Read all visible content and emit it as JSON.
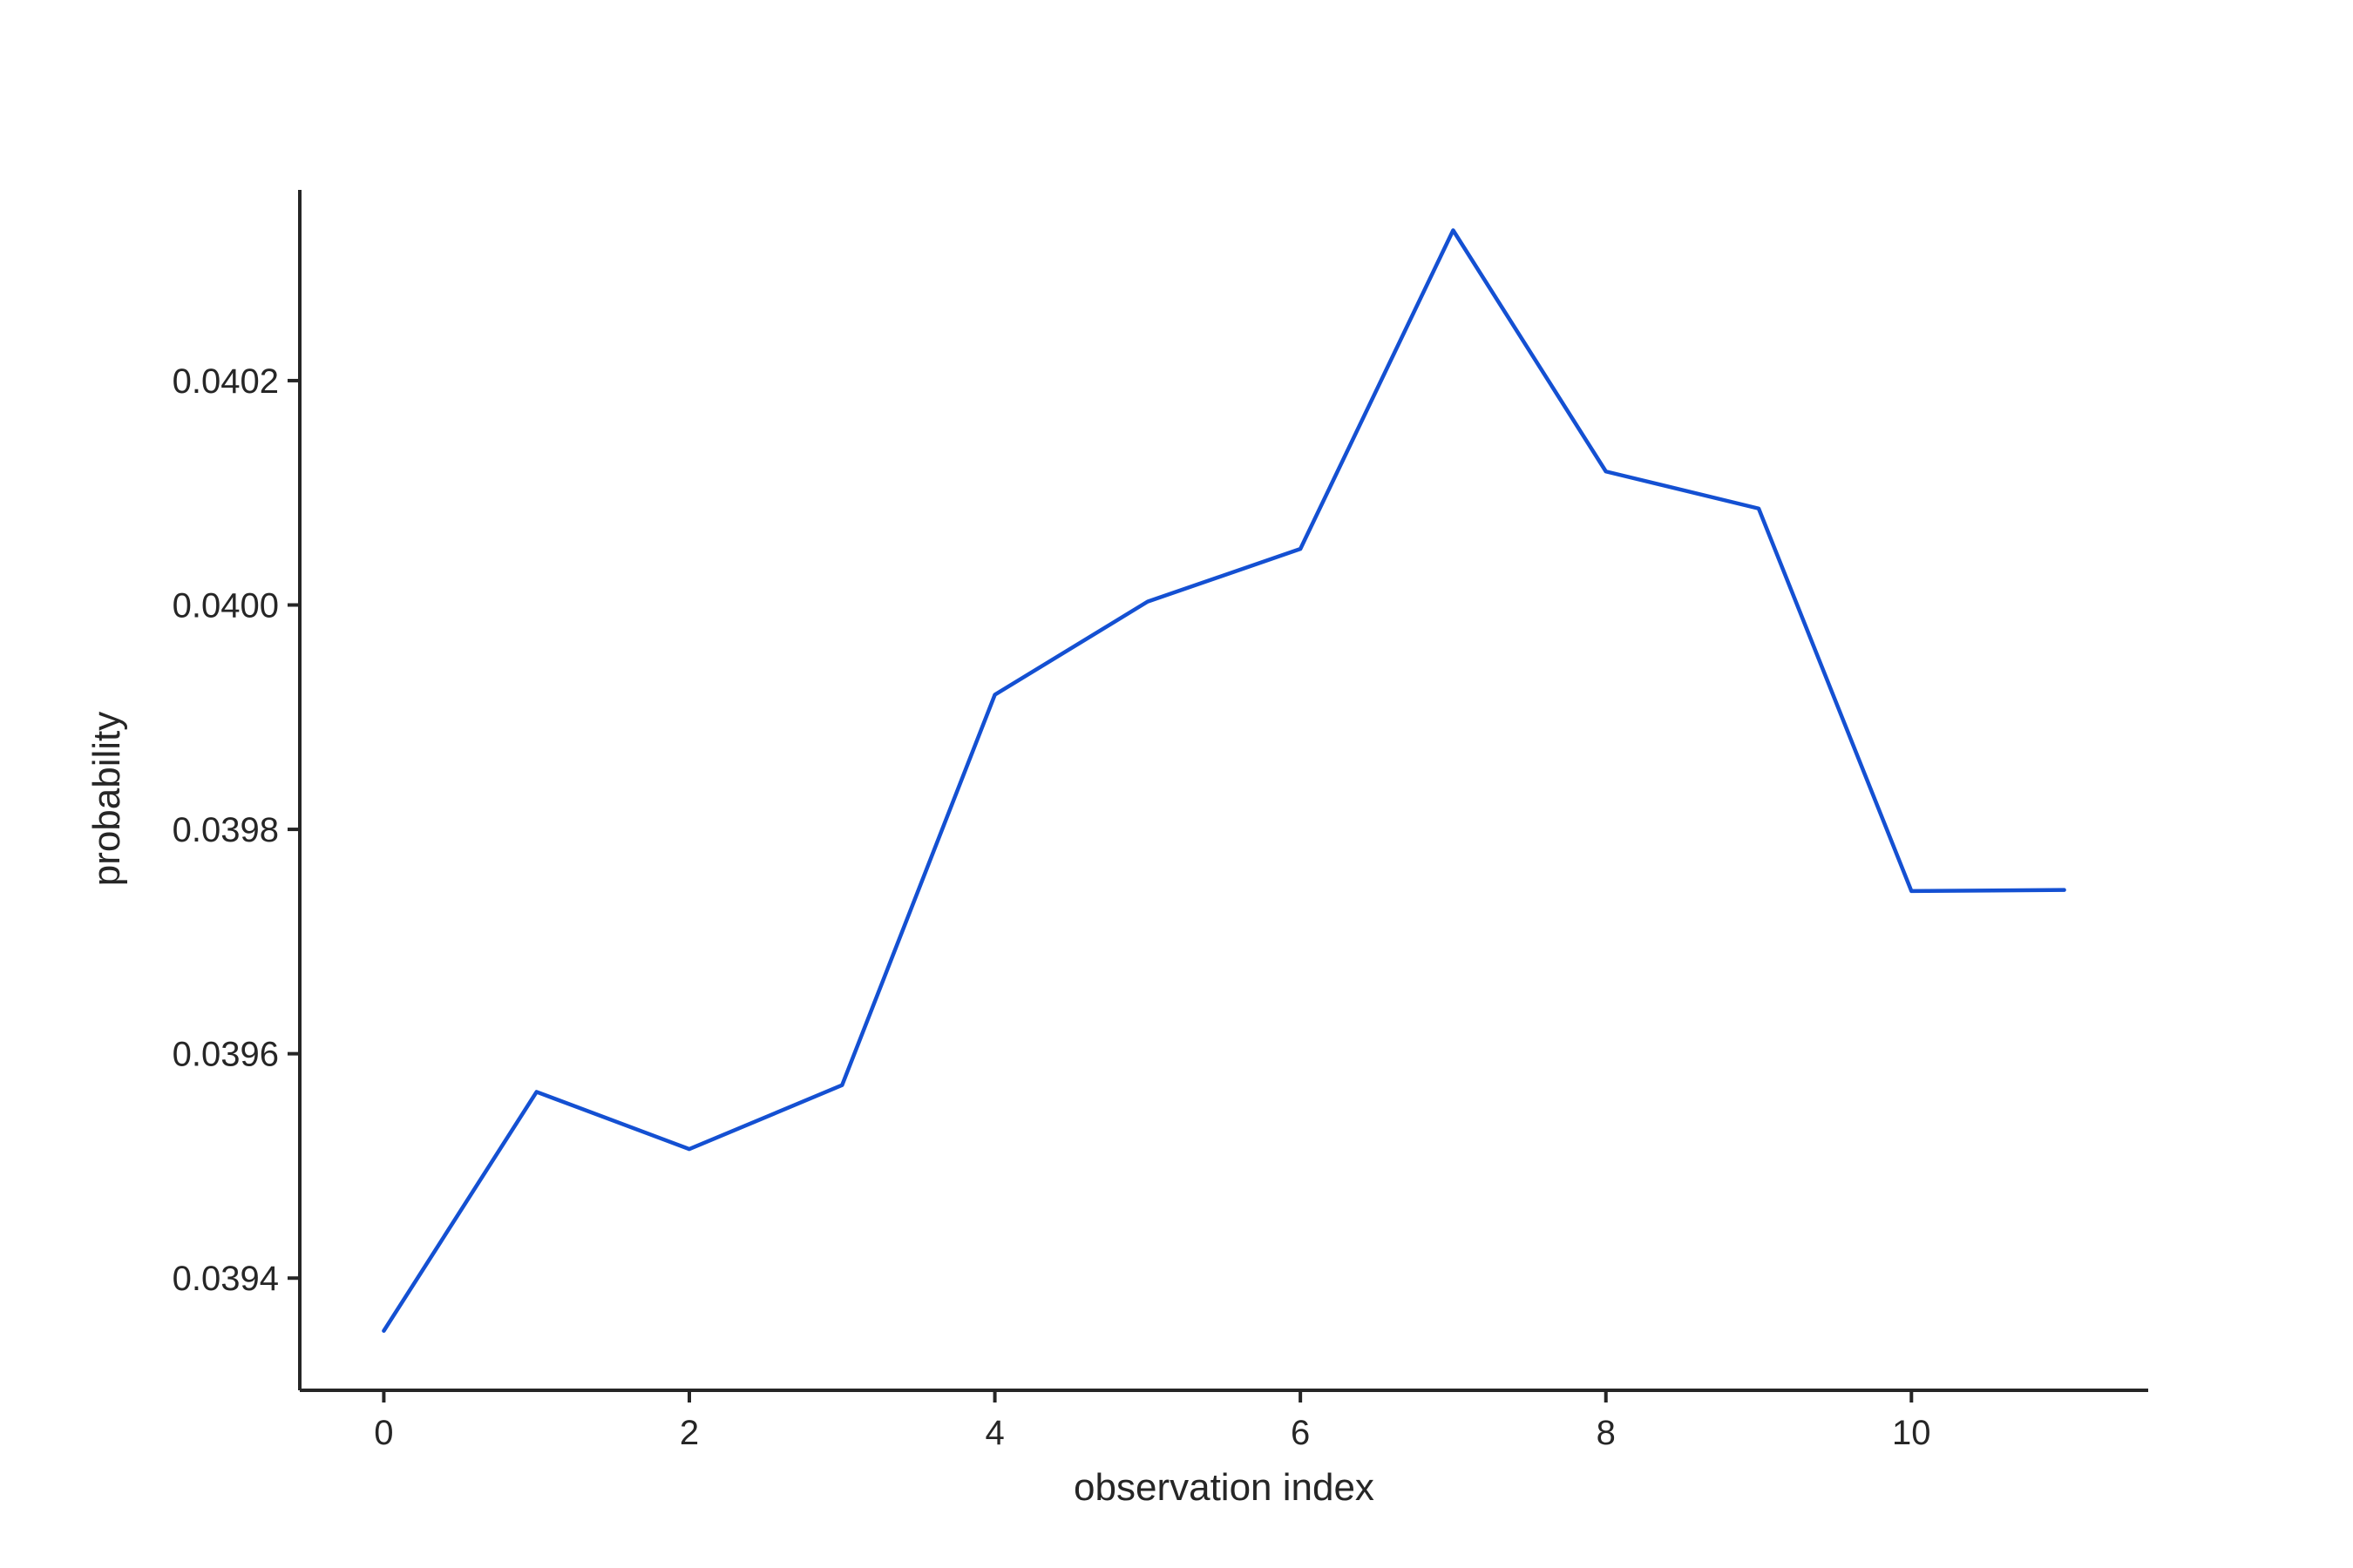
{
  "chart_data": {
    "type": "line",
    "title": "",
    "xlabel": "observation index",
    "ylabel": "probability",
    "x": [
      0,
      1,
      2,
      3,
      4,
      5,
      6,
      7,
      8,
      9,
      10,
      11
    ],
    "series": [
      {
        "values": [
          0.039353,
          0.039566,
          0.039515,
          0.039572,
          0.03992,
          0.040003,
          0.04005,
          0.040334,
          0.040119,
          0.040086,
          0.039745,
          0.039746
        ],
        "color": "#1450d2"
      }
    ],
    "xlim": [
      -0.55,
      11.55
    ],
    "ylim": [
      0.0393,
      0.04037
    ],
    "xticks": [
      0,
      2,
      4,
      6,
      8,
      10
    ],
    "xtick_labels": [
      "0",
      "2",
      "4",
      "6",
      "8",
      "10"
    ],
    "yticks": [
      0.0394,
      0.0396,
      0.0398,
      0.04,
      0.0402
    ],
    "ytick_labels": [
      "0.0394",
      "0.0396",
      "0.0398",
      "0.0400",
      "0.0402"
    ],
    "grid": false,
    "legend": "none"
  }
}
